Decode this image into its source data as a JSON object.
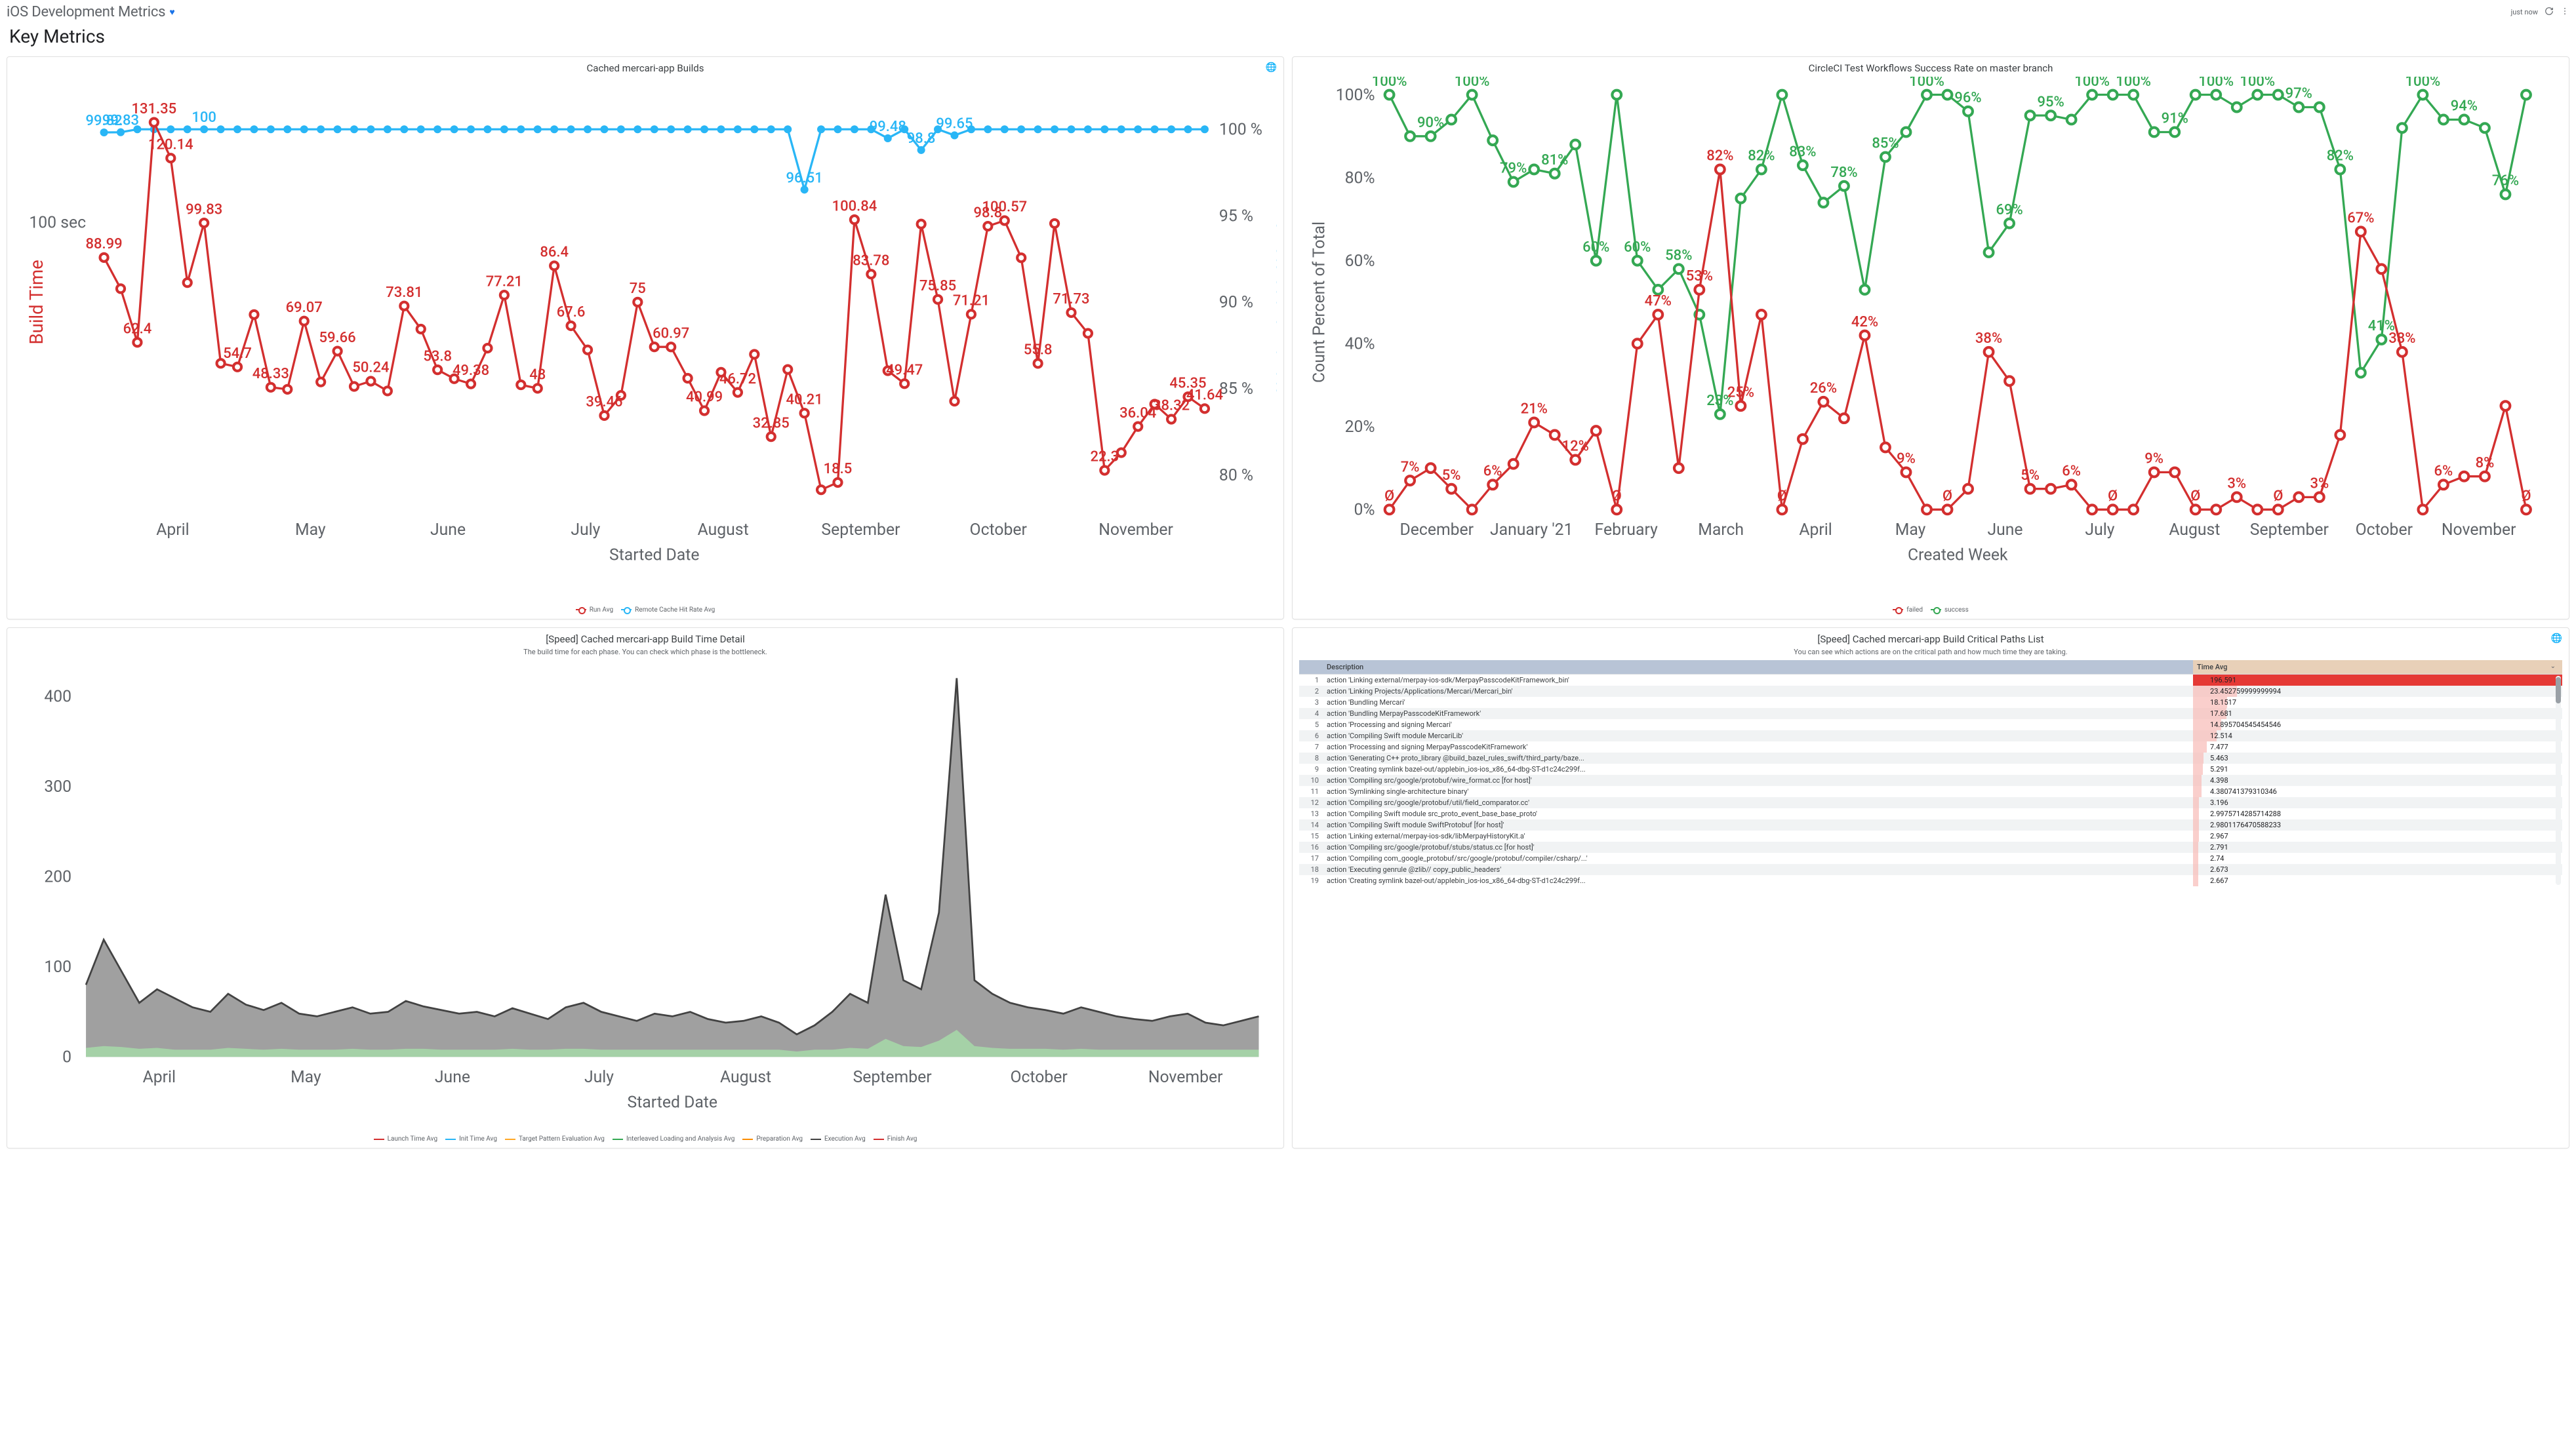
{
  "header": {
    "title": "iOS Development Metrics",
    "refresh_text": "just now"
  },
  "section_title": "Key Metrics",
  "card1": {
    "title": "Cached mercari-app Builds",
    "x_label": "Started Date",
    "y_left_label": "Build Time",
    "y_right_label": "Remote Cache Hit Rate",
    "y_left_tick": "100 sec",
    "y_right_ticks": [
      "100 %",
      "95 %",
      "90 %",
      "85 %",
      "80 %"
    ],
    "months": [
      "April",
      "May",
      "June",
      "July",
      "August",
      "September",
      "October",
      "November"
    ],
    "legend": [
      "Run Avg",
      "Remote Cache Hit Rate Avg"
    ],
    "colors": {
      "run": "#d32f2f",
      "cache": "#29b6f6"
    },
    "run_values": [
      88.99,
      79.22,
      62.4,
      131.35,
      120.14,
      81.12,
      99.83,
      55.82,
      54.7,
      71.11,
      48.33,
      47.69,
      69.07,
      49.99,
      59.66,
      48.58,
      50.24,
      47.17,
      73.81,
      66.57,
      53.8,
      51.0,
      49.38,
      60.59,
      77.21,
      49.09,
      48.0,
      86.4,
      67.6,
      60.05,
      39.46,
      45.78,
      75.0,
      61.0,
      60.97,
      51.15,
      40.99,
      53.02,
      46.72,
      58.65,
      32.85,
      53.9,
      40.21,
      16.21,
      18.5,
      100.84,
      83.78,
      53.52,
      49.47,
      99.48,
      75.85,
      43.96,
      71.21,
      98.8,
      100.57,
      88.91,
      55.8,
      99.65,
      71.73,
      65.22,
      22.3,
      27.83,
      36.04,
      43.05,
      38.32,
      45.35,
      41.64
    ],
    "cache_values": [
      99.82,
      99.83,
      100,
      100,
      100,
      100,
      100,
      100,
      100,
      100,
      100,
      100,
      100,
      100,
      100,
      100,
      100,
      100,
      100,
      100,
      100,
      100,
      100,
      100,
      100,
      100,
      100,
      100,
      100,
      100,
      100,
      100,
      100,
      100,
      100,
      100,
      100,
      100,
      100,
      100,
      100,
      100,
      96.51,
      100,
      100,
      100,
      100,
      99.48,
      100,
      98.8,
      100,
      99.65,
      100,
      100,
      100,
      100,
      100,
      100,
      100,
      100,
      100,
      100,
      100,
      100,
      100,
      100,
      100
    ]
  },
  "card2": {
    "title": "CircleCI Test Workflows Success Rate on master branch",
    "x_label": "Created Week",
    "y_label": "Count Percent of Total",
    "y_ticks": [
      "0%",
      "20%",
      "40%",
      "60%",
      "80%",
      "100%"
    ],
    "months": [
      "December",
      "January '21",
      "February",
      "March",
      "April",
      "May",
      "June",
      "July",
      "August",
      "September",
      "October",
      "November"
    ],
    "legend": [
      "failed",
      "success"
    ],
    "colors": {
      "failed": "#d32f2f",
      "success": "#34a853"
    },
    "failed_values": [
      0,
      7,
      10,
      5,
      0,
      6,
      11,
      21,
      18,
      12,
      19,
      0,
      40,
      47,
      10,
      53,
      82,
      25,
      47,
      0,
      17,
      26,
      22,
      42,
      15,
      9,
      0,
      0,
      5,
      38,
      31,
      5,
      5,
      6,
      0,
      0,
      0,
      9,
      9,
      0,
      0,
      3,
      0,
      0,
      3,
      3,
      18,
      67,
      58,
      38,
      0,
      6,
      8,
      8,
      25,
      0
    ],
    "success_values": [
      100,
      90,
      90,
      94,
      100,
      89,
      79,
      82,
      81,
      88,
      60,
      100,
      60,
      53,
      58,
      47,
      23,
      75,
      82,
      100,
      83,
      74,
      78,
      53,
      85,
      91,
      100,
      100,
      96,
      62,
      69,
      95,
      95,
      94,
      100,
      100,
      100,
      91,
      91,
      100,
      100,
      97,
      100,
      100,
      97,
      97,
      82,
      33,
      41,
      92,
      100,
      94,
      94,
      92,
      76,
      100
    ]
  },
  "card3": {
    "title": "[Speed] Cached mercari-app Build Time Detail",
    "subtitle": "The build time for each phase. You can check which phase is the bottleneck.",
    "x_label": "Started Date",
    "y_ticks": [
      "0",
      "100",
      "200",
      "300",
      "400"
    ],
    "months": [
      "April",
      "May",
      "June",
      "July",
      "August",
      "September",
      "October",
      "November"
    ],
    "legend": [
      "Launch Time Avg",
      "Init Time Avg",
      "Target Pattern Evaluation Avg",
      "Interleaved Loading and Analysis Avg",
      "Preparation Avg",
      "Execution Avg",
      "Finish Avg"
    ],
    "legend_colors": [
      "#d32f2f",
      "#29b6f6",
      "#ffa726",
      "#34a853",
      "#fb8c00",
      "#424242",
      "#d32f2f"
    ],
    "execution_series": [
      80,
      130,
      95,
      60,
      75,
      65,
      55,
      50,
      70,
      58,
      52,
      60,
      48,
      45,
      50,
      55,
      48,
      50,
      62,
      56,
      52,
      48,
      50,
      45,
      54,
      48,
      42,
      55,
      60,
      50,
      45,
      40,
      48,
      45,
      50,
      42,
      38,
      40,
      45,
      38,
      25,
      35,
      50,
      70,
      60,
      180,
      85,
      75,
      160,
      420,
      85,
      70,
      60,
      55,
      52,
      48,
      55,
      50,
      45,
      42,
      40,
      45,
      48,
      38,
      35,
      40,
      45
    ],
    "analysis_series": [
      10,
      12,
      11,
      9,
      10,
      8,
      8,
      8,
      10,
      9,
      8,
      9,
      8,
      8,
      8,
      9,
      8,
      8,
      9,
      9,
      8,
      8,
      8,
      8,
      9,
      8,
      8,
      9,
      9,
      8,
      8,
      8,
      8,
      8,
      8,
      8,
      8,
      8,
      8,
      8,
      6,
      8,
      8,
      10,
      9,
      20,
      12,
      11,
      18,
      30,
      12,
      10,
      9,
      9,
      9,
      8,
      9,
      8,
      8,
      8,
      8,
      8,
      8,
      8,
      8,
      8,
      8
    ]
  },
  "card4": {
    "title": "[Speed] Cached mercari-app Build Critical Paths List",
    "subtitle": "You can see which actions are on the critical path and how much time they are taking.",
    "columns": [
      "",
      "Description",
      "Time Avg"
    ],
    "max_time": 196.591,
    "rows": [
      {
        "n": 1,
        "desc": "action 'Linking external/merpay-ios-sdk/MerpayPasscodeKitFramework_bin'",
        "val": 196.591
      },
      {
        "n": 2,
        "desc": "action 'Linking Projects/Applications/Mercari/Mercari_bin'",
        "val": 23.452759999999994
      },
      {
        "n": 3,
        "desc": "action 'Bundling Mercari'",
        "val": 18.1517
      },
      {
        "n": 4,
        "desc": "action 'Bundling MerpayPasscodeKitFramework'",
        "val": 17.681
      },
      {
        "n": 5,
        "desc": "action 'Processing and signing Mercari'",
        "val": 14.895704545454546
      },
      {
        "n": 6,
        "desc": "action 'Compiling Swift module MercariLib'",
        "val": 12.514
      },
      {
        "n": 7,
        "desc": "action 'Processing and signing MerpayPasscodeKitFramework'",
        "val": 7.477
      },
      {
        "n": 8,
        "desc": "action 'Generating C++ proto_library @build_bazel_rules_swift/third_party/baze...",
        "val": 5.463
      },
      {
        "n": 9,
        "desc": "action 'Creating symlink bazel-out/applebin_ios-ios_x86_64-dbg-ST-d1c24c299f...",
        "val": 5.291
      },
      {
        "n": 10,
        "desc": "action 'Compiling src/google/protobuf/wire_format.cc [for host]'",
        "val": 4.398
      },
      {
        "n": 11,
        "desc": "action 'Symlinking single-architecture binary'",
        "val": 4.380741379310346
      },
      {
        "n": 12,
        "desc": "action 'Compiling src/google/protobuf/util/field_comparator.cc'",
        "val": 3.196
      },
      {
        "n": 13,
        "desc": "action 'Compiling Swift module src_proto_event_base_base_proto'",
        "val": 2.9975714285714288
      },
      {
        "n": 14,
        "desc": "action 'Compiling Swift module SwiftProtobuf [for host]'",
        "val": 2.9801176470588233
      },
      {
        "n": 15,
        "desc": "action 'Linking external/merpay-ios-sdk/libMerpayHistoryKit.a'",
        "val": 2.967
      },
      {
        "n": 16,
        "desc": "action 'Compiling src/google/protobuf/stubs/status.cc [for host]'",
        "val": 2.791
      },
      {
        "n": 17,
        "desc": "action 'Compiling com_google_protobuf/src/google/protobuf/compiler/csharp/...'",
        "val": 2.74
      },
      {
        "n": 18,
        "desc": "action 'Executing genrule @zlib// copy_public_headers'",
        "val": 2.673
      },
      {
        "n": 19,
        "desc": "action 'Creating symlink bazel-out/applebin_ios-ios_x86_64-dbg-ST-d1c24c299f...",
        "val": 2.667
      }
    ],
    "bar_color_strong": "#e53935",
    "bar_color_light": "#f8bbb7"
  }
}
